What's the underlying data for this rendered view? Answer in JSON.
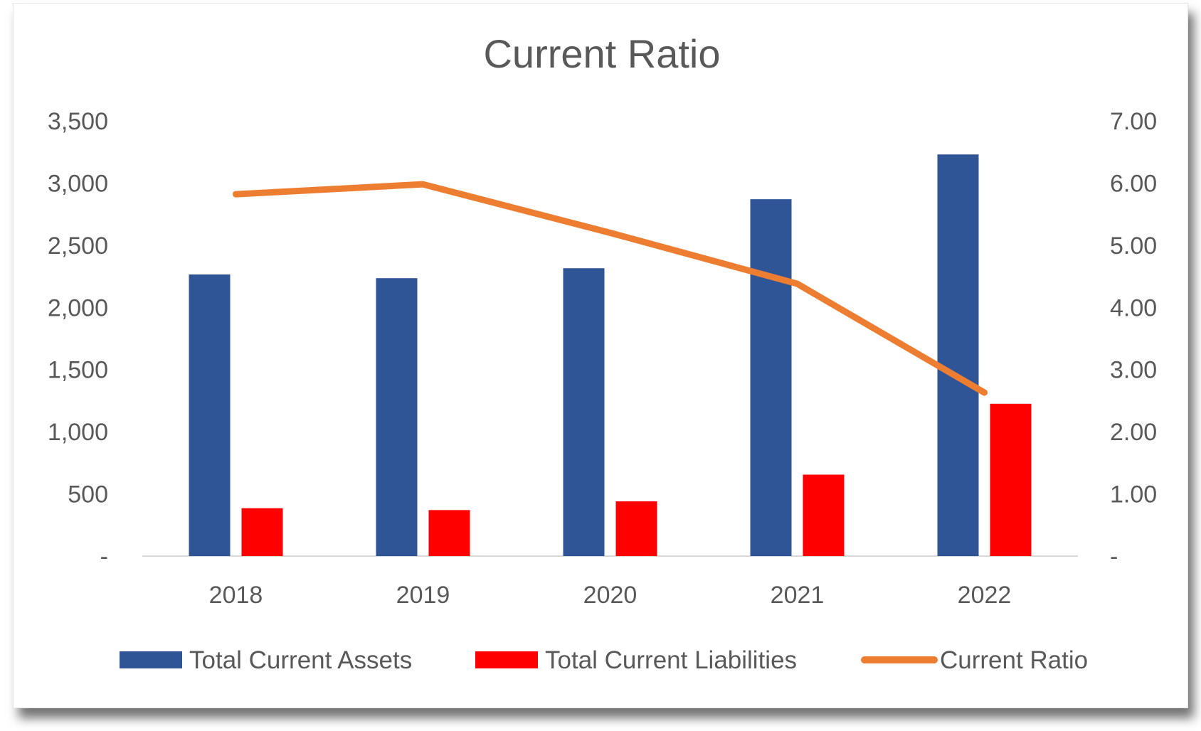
{
  "chart_data": {
    "type": "bar",
    "title": "Current Ratio",
    "categories": [
      "2018",
      "2019",
      "2020",
      "2021",
      "2022"
    ],
    "series": [
      {
        "name": "Total Current Assets",
        "type": "bar",
        "axis": "left",
        "color": "#2F5597",
        "values": [
          2265,
          2235,
          2315,
          2870,
          3230
        ]
      },
      {
        "name": "Total Current Liabilities",
        "type": "bar",
        "axis": "left",
        "color": "#FF0000",
        "values": [
          385,
          370,
          440,
          655,
          1225
        ]
      },
      {
        "name": "Current Ratio",
        "type": "line",
        "axis": "right",
        "color": "#ED7D31",
        "values": [
          5.82,
          5.98,
          5.2,
          4.38,
          2.63
        ]
      }
    ],
    "y_left": {
      "ticks": [
        "-",
        "500",
        "1,000",
        "1,500",
        "2,000",
        "2,500",
        "3,000",
        "3,500"
      ],
      "ylim": [
        0,
        3500
      ]
    },
    "y_right": {
      "ticks": [
        "-",
        "1.00",
        "2.00",
        "3.00",
        "4.00",
        "5.00",
        "6.00",
        "7.00"
      ],
      "ylim": [
        0,
        7
      ]
    },
    "grid": false,
    "legend": "bottom"
  }
}
